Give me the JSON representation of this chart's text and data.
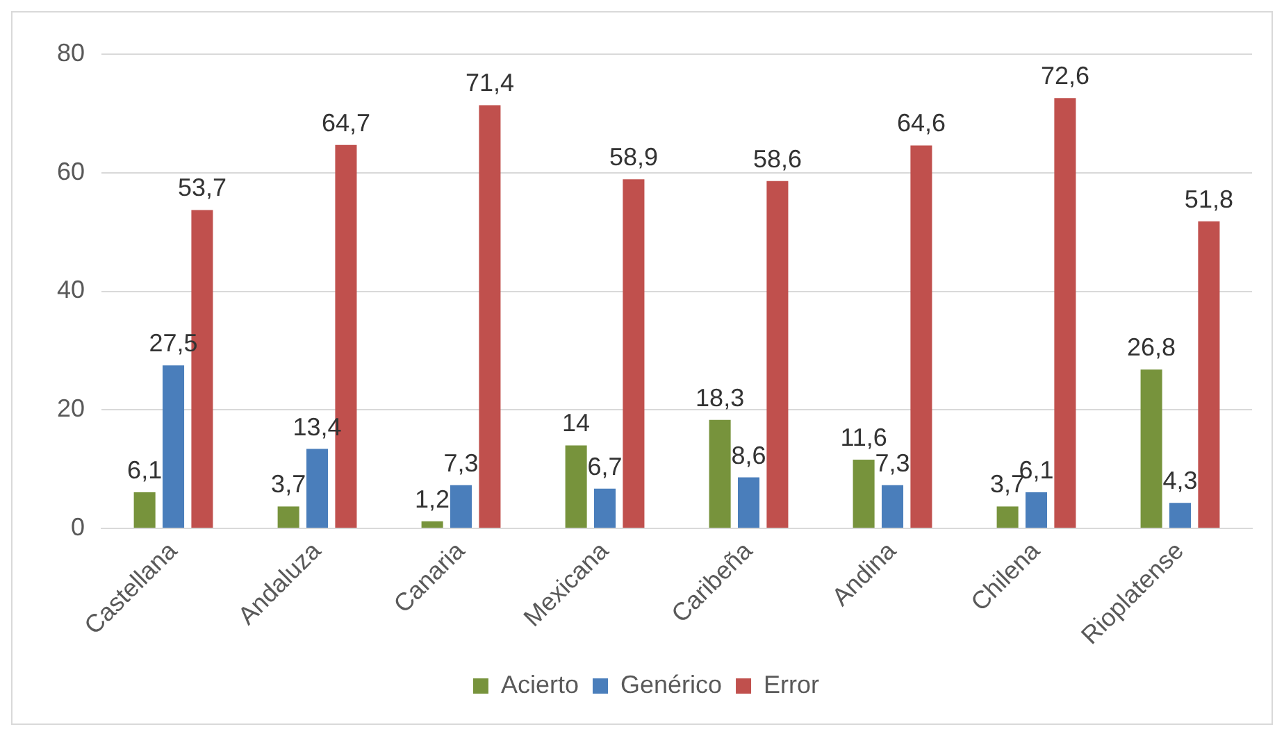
{
  "chart_data": {
    "type": "bar",
    "categories": [
      "Castellana",
      "Andaluza",
      "Canaria",
      "Mexicana",
      "Caribeña",
      "Andina",
      "Chilena",
      "Rioplatense"
    ],
    "series": [
      {
        "name": "Acierto",
        "color": "#77933c",
        "values": [
          6.1,
          3.7,
          1.2,
          14,
          18.3,
          11.6,
          3.7,
          26.8
        ],
        "value_labels": [
          "6,1",
          "3,7",
          "1,2",
          "14",
          "18,3",
          "11,6",
          "3,7",
          "26,8"
        ]
      },
      {
        "name": "Genérico",
        "color": "#4a7ebb",
        "values": [
          27.5,
          13.4,
          7.3,
          6.7,
          8.6,
          7.3,
          6.1,
          4.3
        ],
        "value_labels": [
          "27,5",
          "13,4",
          "7,3",
          "6,7",
          "8,6",
          "7,3",
          "6,1",
          "4,3"
        ]
      },
      {
        "name": "Error",
        "color": "#c0504d",
        "values": [
          53.7,
          64.7,
          71.4,
          58.9,
          58.6,
          64.6,
          72.6,
          51.8
        ],
        "value_labels": [
          "53,7",
          "64,7",
          "71,4",
          "58,9",
          "58,6",
          "64,6",
          "72,6",
          "51,8"
        ]
      }
    ],
    "ylim": [
      0,
      80
    ],
    "yticks": [
      0,
      20,
      40,
      60,
      80
    ],
    "grid": "y",
    "legend": "bottom"
  }
}
